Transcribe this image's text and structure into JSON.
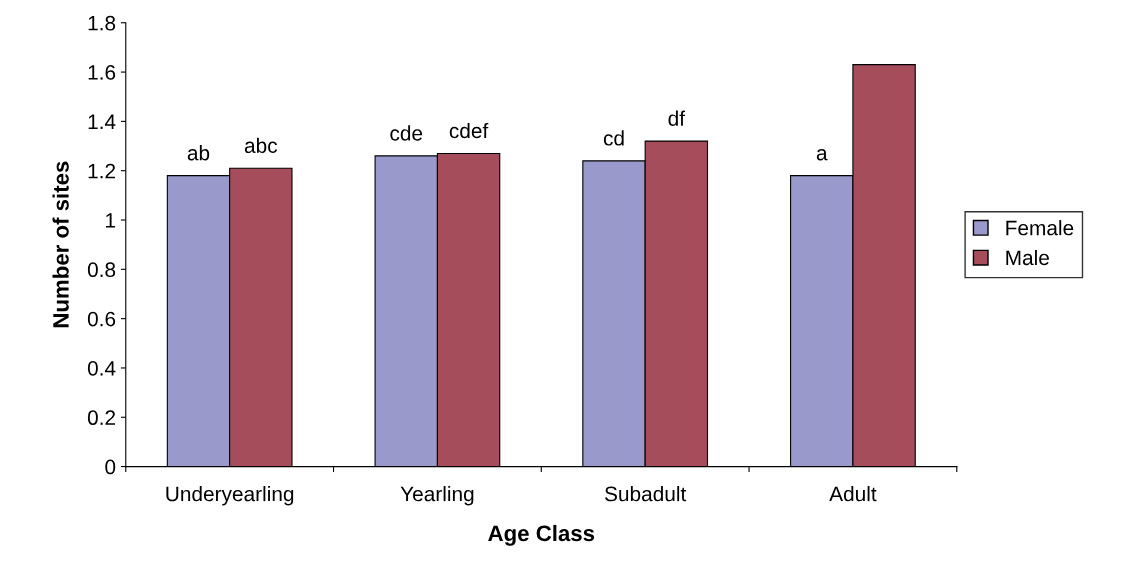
{
  "chart_data": {
    "type": "bar",
    "xlabel": "Age Class",
    "ylabel": "Number of sites",
    "categories": [
      "Underyearling",
      "Yearling",
      "Subadult",
      "Adult"
    ],
    "series": [
      {
        "name": "Female",
        "color": "#9999cc",
        "values": [
          1.18,
          1.26,
          1.24,
          1.18
        ],
        "value_labels": [
          "ab",
          "cde",
          "cd",
          "a"
        ]
      },
      {
        "name": "Male",
        "color": "#a64d5c",
        "values": [
          1.21,
          1.27,
          1.32,
          1.63
        ],
        "value_labels": [
          "abc",
          "cdef",
          "df",
          null
        ]
      }
    ],
    "ylim": [
      0,
      1.8
    ],
    "yticks": [
      0,
      0.2,
      0.4,
      0.6,
      0.8,
      1,
      1.2,
      1.4,
      1.6,
      1.8
    ],
    "grid": false,
    "legend": "right"
  }
}
